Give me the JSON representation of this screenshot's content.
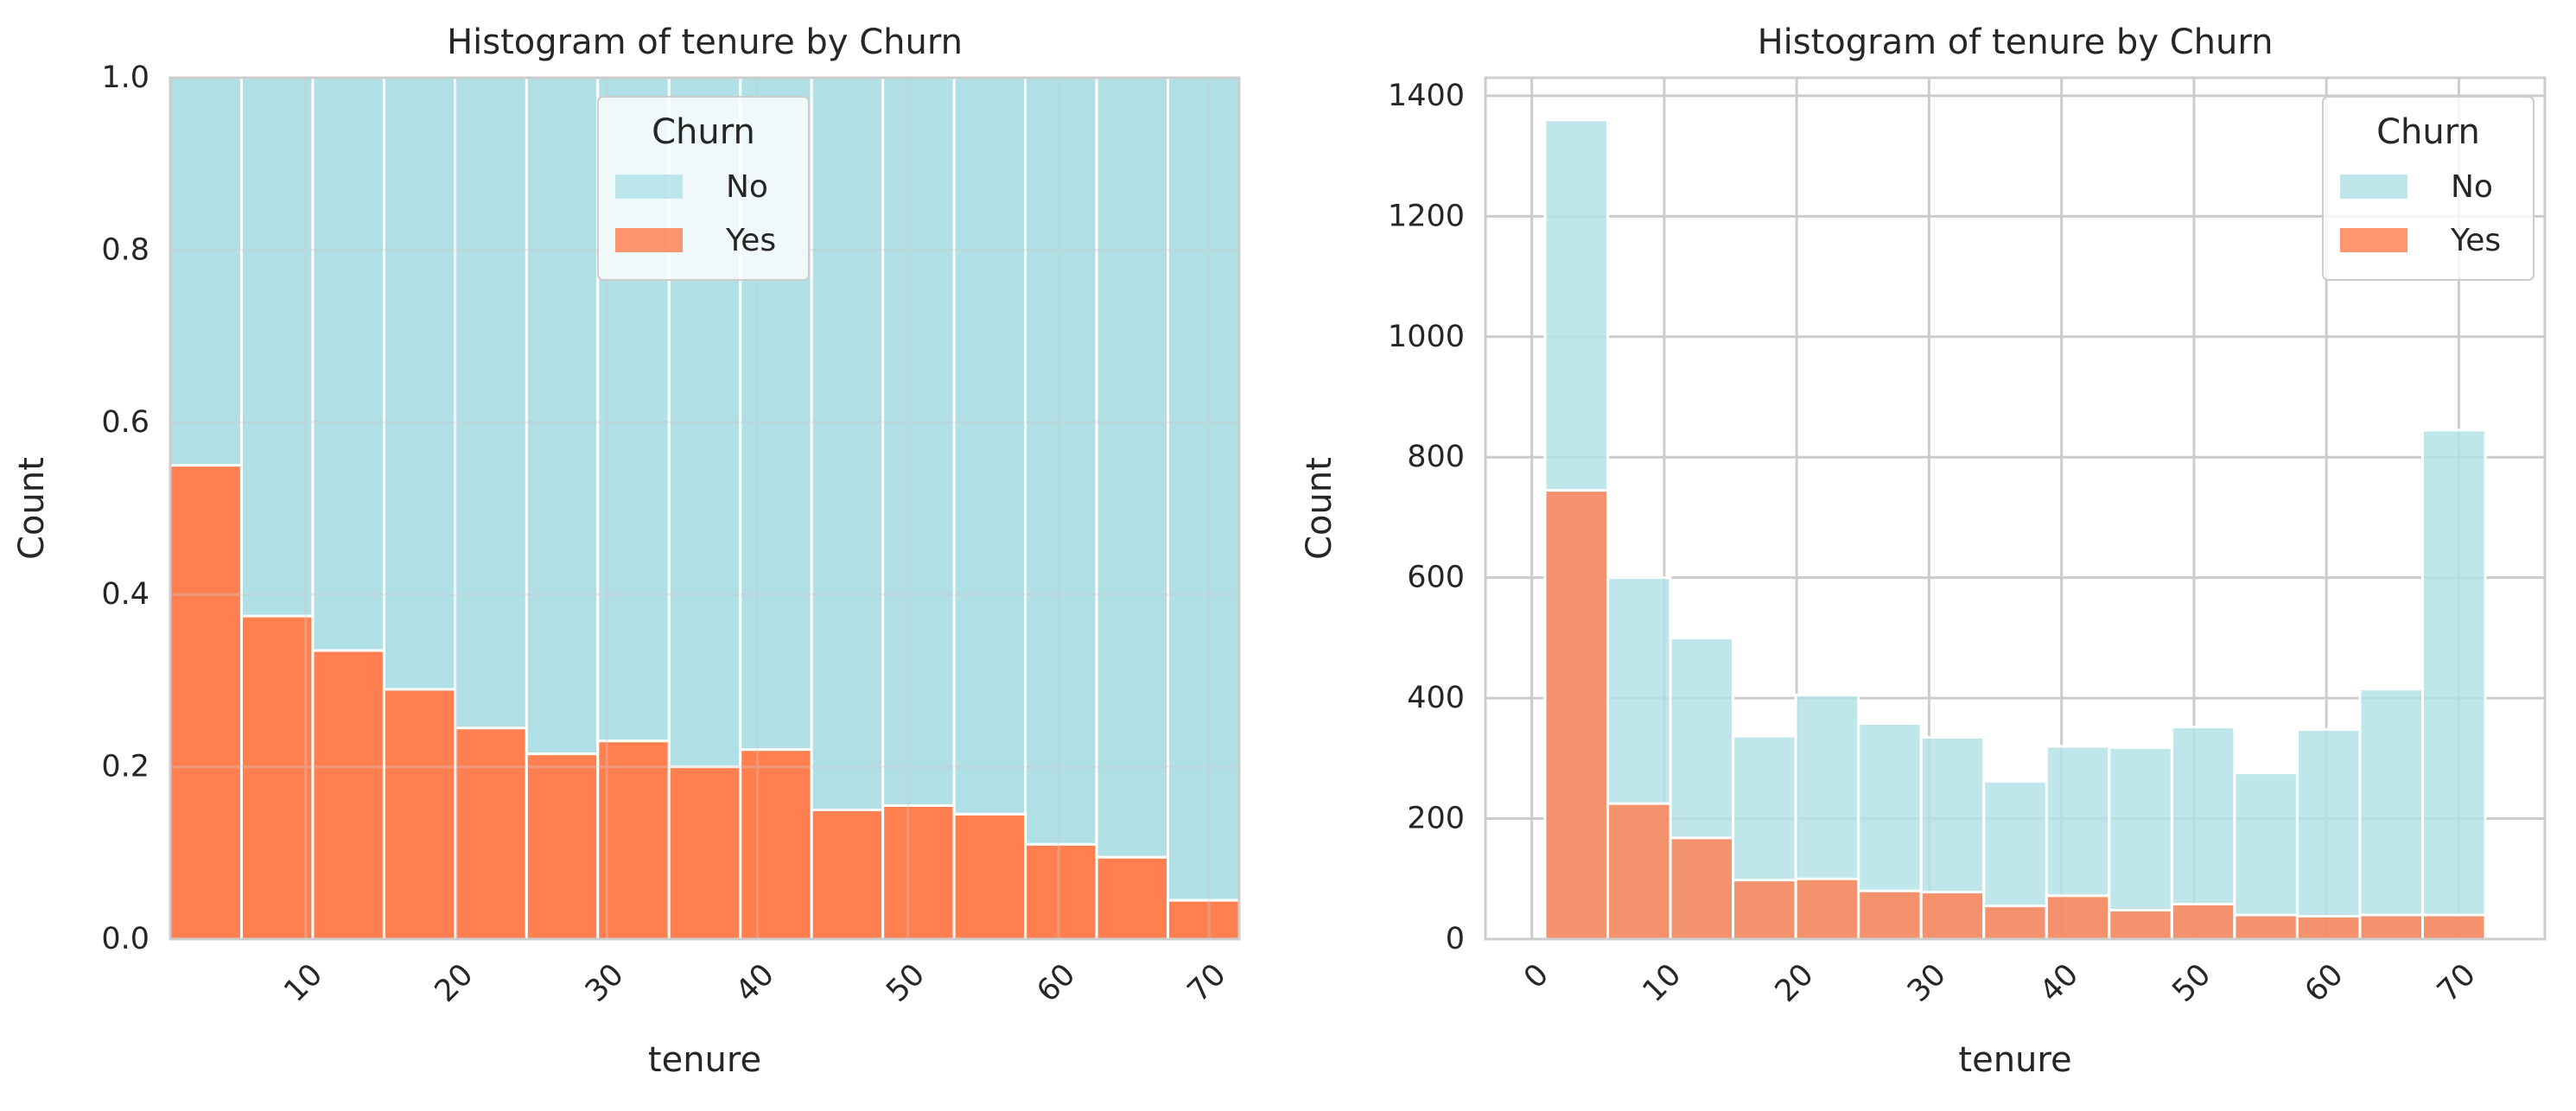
{
  "colors": {
    "no": "#b0e0e6",
    "yes": "#ff7f50",
    "grid": "#cccccc",
    "frame": "#cccccc"
  },
  "chart_data": [
    {
      "type": "bar",
      "stacking": "fill",
      "title": "Histogram of tenure by Churn",
      "xlabel": "tenure",
      "ylabel": "Count",
      "xlim": [
        1,
        72
      ],
      "ylim": [
        0,
        1.0
      ],
      "xticks": [
        10,
        20,
        30,
        40,
        50,
        60,
        70
      ],
      "yticks": [
        "0.0",
        "0.2",
        "0.4",
        "0.6",
        "0.8",
        "1.0"
      ],
      "grid": true,
      "legend": {
        "title": "Churn",
        "placement": "upper-center",
        "entries": [
          "No",
          "Yes"
        ]
      },
      "bin_edges": [
        1,
        5.733,
        10.467,
        15.2,
        19.933,
        24.667,
        29.4,
        34.133,
        38.867,
        43.6,
        48.333,
        53.067,
        57.8,
        62.533,
        67.267,
        72
      ],
      "series": [
        {
          "name": "No",
          "values": [
            0.45,
            0.625,
            0.665,
            0.71,
            0.755,
            0.785,
            0.77,
            0.8,
            0.78,
            0.85,
            0.845,
            0.855,
            0.89,
            0.905,
            0.955
          ]
        },
        {
          "name": "Yes",
          "values": [
            0.55,
            0.375,
            0.335,
            0.29,
            0.245,
            0.215,
            0.23,
            0.2,
            0.22,
            0.15,
            0.155,
            0.145,
            0.11,
            0.095,
            0.045
          ]
        }
      ]
    },
    {
      "type": "bar",
      "stacking": "overlay",
      "title": "Histogram of tenure by Churn",
      "xlabel": "tenure",
      "ylabel": "Count",
      "xlim": [
        -3.5,
        76.5
      ],
      "ylim": [
        0,
        1430
      ],
      "xticks": [
        0,
        10,
        20,
        30,
        40,
        50,
        60,
        70
      ],
      "yticks": [
        0,
        200,
        400,
        600,
        800,
        1000,
        1200,
        1400
      ],
      "grid": true,
      "legend": {
        "title": "Churn",
        "placement": "upper-right",
        "entries": [
          "No",
          "Yes"
        ]
      },
      "bin_edges": [
        1,
        5.733,
        10.467,
        15.2,
        19.933,
        24.667,
        29.4,
        34.133,
        38.867,
        43.6,
        48.333,
        53.067,
        57.8,
        62.533,
        67.267,
        72
      ],
      "series": [
        {
          "name": "No",
          "values": [
            1360,
            600,
            500,
            337,
            405,
            358,
            335,
            262,
            320,
            318,
            352,
            276,
            348,
            415,
            845
          ]
        },
        {
          "name": "Yes",
          "values": [
            745,
            225,
            168,
            98,
            100,
            80,
            78,
            55,
            72,
            48,
            58,
            40,
            38,
            40,
            40
          ]
        }
      ]
    }
  ]
}
